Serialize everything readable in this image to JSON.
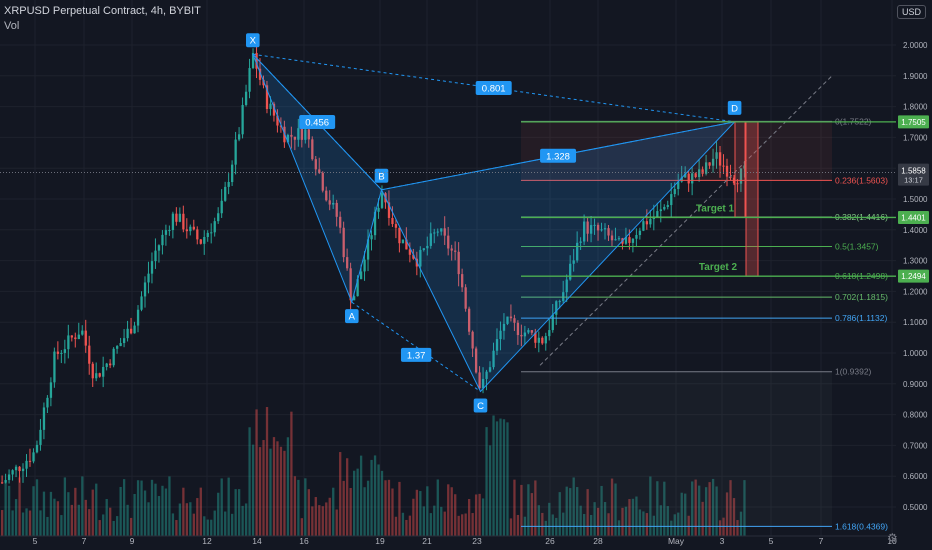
{
  "header": {
    "title": "XRPUSD Perpetual Contract, 4h, BYBIT",
    "volume_label": "Vol",
    "currency": "USD"
  },
  "colors": {
    "background": "#131722",
    "up": "#26a69a",
    "down": "#ef5350",
    "pattern": "#2196f3",
    "target": "#4caf50",
    "grid": "#1e222d"
  },
  "chart_data": {
    "type": "candlestick",
    "price_axis": {
      "ylim": [
        0.42,
        2.13
      ],
      "tick_labels": [
        "2.0000",
        "1.9000",
        "1.8000",
        "1.7000",
        "1.6000",
        "1.5000",
        "1.4000",
        "1.3000",
        "1.2000",
        "1.1000",
        "1.0000",
        "0.9000",
        "0.8000",
        "0.7000",
        "0.6000",
        "0.5000"
      ]
    },
    "time_axis": {
      "tick_labels": [
        {
          "label": "5",
          "col": 0
        },
        {
          "label": "7",
          "col": 1
        },
        {
          "label": "9",
          "col": 2
        },
        {
          "label": "12",
          "col": 3
        },
        {
          "label": "14",
          "col": 4
        },
        {
          "label": "16",
          "col": 5
        },
        {
          "label": "19",
          "col": 6
        },
        {
          "label": "21",
          "col": 7
        },
        {
          "label": "23",
          "col": 8
        },
        {
          "label": "26",
          "col": 9
        },
        {
          "label": "28",
          "col": 10
        },
        {
          "label": "May",
          "col": 11
        },
        {
          "label": "3",
          "col": 12
        },
        {
          "label": "5",
          "col": 13
        },
        {
          "label": "7",
          "col": 14
        },
        {
          "label": "10",
          "col": 15
        }
      ]
    },
    "last_price": {
      "value": "1.5858",
      "countdown": "13:17"
    },
    "price_badges": [
      {
        "value": "1.7505",
        "price": 1.7505
      },
      {
        "value": "1.4401",
        "price": 1.4401
      },
      {
        "value": "1.2494",
        "price": 1.2494
      }
    ],
    "pattern": {
      "points": [
        {
          "label": "X",
          "bar": 76,
          "price": 1.97
        },
        {
          "label": "A",
          "bar": 106,
          "price": 1.165
        },
        {
          "label": "B",
          "bar": 115,
          "price": 1.53
        },
        {
          "label": "C",
          "bar": 145,
          "price": 0.875
        },
        {
          "label": "D",
          "bar": 222,
          "price": 1.7505
        }
      ],
      "ratios": [
        {
          "label": "0.456",
          "between": [
            "X",
            "B"
          ]
        },
        {
          "label": "1.37",
          "between": [
            "A",
            "C"
          ]
        },
        {
          "label": "1.328",
          "between": [
            "B",
            "D"
          ]
        },
        {
          "label": "0.801",
          "between": [
            "X",
            "D"
          ]
        }
      ]
    },
    "fibonacci": [
      {
        "label": "0(1.7522)",
        "price": 1.7522,
        "color": "#787b86"
      },
      {
        "label": "0.236(1.5603)",
        "price": 1.5603,
        "color": "#ef5350"
      },
      {
        "label": "0.382(1.4416)",
        "price": 1.4416,
        "color": "#81c784"
      },
      {
        "label": "0.5(1.3457)",
        "price": 1.3457,
        "color": "#4caf50"
      },
      {
        "label": "0.618(1.2498)",
        "price": 1.2498,
        "color": "#4caf50"
      },
      {
        "label": "0.702(1.1815)",
        "price": 1.1815,
        "color": "#66bb6a"
      },
      {
        "label": "0.786(1.1132)",
        "price": 1.1132,
        "color": "#42a5f5"
      },
      {
        "label": "1(0.9392)",
        "price": 0.9392,
        "color": "#787b86"
      },
      {
        "label": "1.618(0.4369)",
        "price": 0.4369,
        "color": "#42a5f5"
      }
    ],
    "targets": [
      {
        "label": "Target 1",
        "price": 1.4401
      },
      {
        "label": "Target 2",
        "price": 1.2494
      }
    ]
  }
}
